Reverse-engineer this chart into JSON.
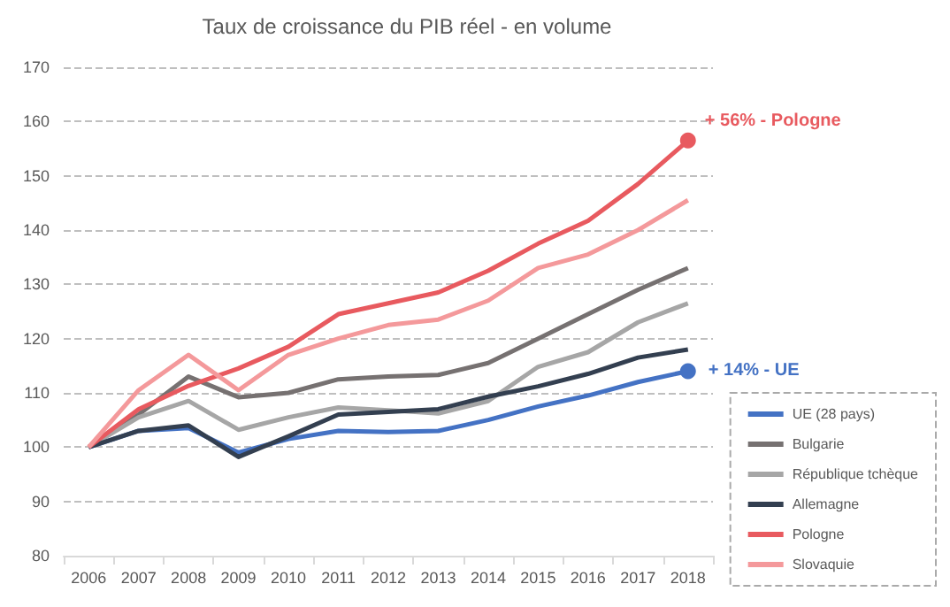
{
  "chart_data": {
    "type": "line",
    "title": "Taux de croissance du PIB réel - en volume",
    "categories": [
      "2006",
      "2007",
      "2008",
      "2009",
      "2010",
      "2011",
      "2012",
      "2013",
      "2014",
      "2015",
      "2016",
      "2017",
      "2018"
    ],
    "series": [
      {
        "name": "UE (28 pays)",
        "color": "#4472c4",
        "values": [
          100,
          103,
          103.5,
          99,
          101.5,
          103,
          102.8,
          103,
          105,
          107.5,
          109.5,
          112,
          114
        ]
      },
      {
        "name": "Bulgarie",
        "color": "#767171",
        "values": [
          100,
          106,
          113,
          109.2,
          110,
          112.5,
          113,
          113.3,
          115.5,
          120,
          124.5,
          129,
          133
        ]
      },
      {
        "name": "République tchèque",
        "color": "#a6a6a6",
        "values": [
          100,
          105.5,
          108.5,
          103.2,
          105.5,
          107.3,
          106.8,
          106.2,
          108.5,
          114.8,
          117.5,
          123,
          126.5
        ]
      },
      {
        "name": "Allemagne",
        "color": "#333f50",
        "values": [
          100,
          103,
          104,
          98.2,
          102,
          106,
          106.5,
          107,
          109.3,
          111.2,
          113.5,
          116.5,
          118
        ]
      },
      {
        "name": "Pologne",
        "color": "#e85a5f",
        "values": [
          100,
          107,
          111.3,
          114.5,
          118.5,
          124.5,
          126.5,
          128.5,
          132.5,
          137.5,
          141.7,
          148.5,
          156.5
        ]
      },
      {
        "name": "Slovaquie",
        "color": "#f4999b",
        "values": [
          100,
          110.5,
          117,
          110.5,
          117,
          120,
          122.5,
          123.5,
          127,
          133,
          135.5,
          140,
          145.5
        ]
      }
    ],
    "ylim": [
      80,
      170
    ],
    "yticks": [
      80,
      90,
      100,
      110,
      120,
      130,
      140,
      150,
      160,
      170
    ],
    "annotations": [
      {
        "text": "+ 56% - Pologne",
        "x": "2018",
        "y": 156.5
      },
      {
        "text": "+ 14% - UE",
        "x": "2018",
        "y": 114
      }
    ],
    "grid": "y",
    "legend": "bottom right",
    "marker": "none",
    "line_style": "solid"
  }
}
